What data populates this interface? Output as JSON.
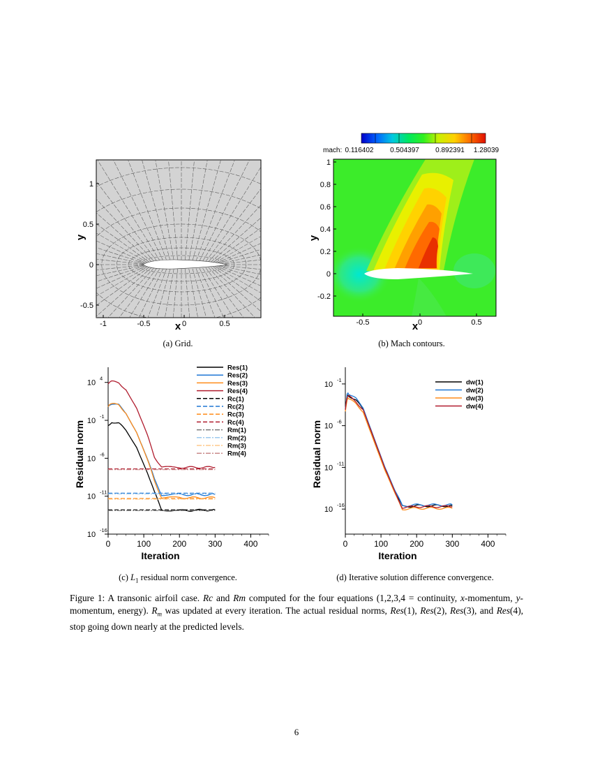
{
  "panel_a": {
    "caption": "(a) Grid.",
    "xlabel": "x",
    "ylabel": "y",
    "xticks": [
      "-1",
      "-0.5",
      "0",
      "0.5"
    ],
    "yticks": [
      "1",
      "0.5",
      "0",
      "-0.5"
    ]
  },
  "panel_b": {
    "caption": "(b) Mach contours.",
    "xlabel": "x",
    "ylabel": "y",
    "xticks": [
      "-0.5",
      "0",
      "0.5"
    ],
    "yticks": [
      "1",
      "0.8",
      "0.6",
      "0.4",
      "0.2",
      "0",
      "-0.2"
    ],
    "colorbar_label": "mach:",
    "colorbar_ticks": [
      "0.116402",
      "0.504397",
      "0.892391",
      "1.28039"
    ]
  },
  "chart_data": [
    {
      "type": "line",
      "xlabel": "Iteration",
      "ylabel": "Residual norm",
      "xticks": [
        "0",
        "100",
        "200",
        "300",
        "400"
      ],
      "yticks": [
        "10",
        "10",
        "10",
        "10",
        "10"
      ],
      "yticks_exp": [
        "4",
        "-1",
        "-6",
        "-11",
        "-16"
      ],
      "xlim": [
        0,
        450
      ],
      "ylim_log10": [
        -16,
        6
      ],
      "series": [
        {
          "name": "Res(1)",
          "color": "#000000",
          "dash": "solid",
          "x": [
            0,
            10,
            30,
            50,
            80,
            110,
            130,
            150,
            200,
            300
          ],
          "y": [
            -1.7,
            -1.2,
            -1.4,
            -2.3,
            -4.5,
            -7.8,
            -10.5,
            -12.8,
            -12.9,
            -12.8
          ]
        },
        {
          "name": "Res(2)",
          "color": "#1f77d4",
          "dash": "solid",
          "x": [
            0,
            10,
            30,
            50,
            80,
            110,
            130,
            150,
            200,
            300
          ],
          "y": [
            0.8,
            1.2,
            1.0,
            0.0,
            -2.5,
            -6.0,
            -8.8,
            -10.8,
            -10.8,
            -10.8
          ]
        },
        {
          "name": "Res(3)",
          "color": "#ff8c1a",
          "dash": "solid",
          "x": [
            0,
            10,
            30,
            50,
            80,
            110,
            130,
            150,
            200,
            300
          ],
          "y": [
            0.8,
            1.2,
            1.0,
            0.0,
            -2.6,
            -6.2,
            -9.0,
            -11.2,
            -11.2,
            -11.2
          ]
        },
        {
          "name": "Res(4)",
          "color": "#b01c2e",
          "dash": "solid",
          "x": [
            0,
            10,
            30,
            50,
            80,
            110,
            130,
            150,
            200,
            300
          ],
          "y": [
            3.8,
            4.1,
            4.0,
            3.0,
            0.5,
            -3.0,
            -5.8,
            -7.2,
            -7.2,
            -7.2
          ]
        },
        {
          "name": "Rc(1)",
          "color": "#000000",
          "dash": "dash",
          "x": [
            0,
            300
          ],
          "y": [
            -12.8,
            -12.8
          ]
        },
        {
          "name": "Rc(2)",
          "color": "#1f77d4",
          "dash": "dash",
          "x": [
            0,
            300
          ],
          "y": [
            -10.6,
            -10.6
          ]
        },
        {
          "name": "Rc(3)",
          "color": "#ff8c1a",
          "dash": "dash",
          "x": [
            0,
            300
          ],
          "y": [
            -11.3,
            -11.3
          ]
        },
        {
          "name": "Rc(4)",
          "color": "#b01c2e",
          "dash": "dash",
          "x": [
            0,
            300
          ],
          "y": [
            -7.4,
            -7.4
          ]
        },
        {
          "name": "Rm(1)",
          "color": "#7a7a7a",
          "dash": "dashdot",
          "x": [
            0,
            300
          ],
          "y": [
            -12.9,
            -12.9
          ]
        },
        {
          "name": "Rm(2)",
          "color": "#9cc8ee",
          "dash": "dashdot",
          "x": [
            0,
            300
          ],
          "y": [
            -10.7,
            -10.7
          ]
        },
        {
          "name": "Rm(3)",
          "color": "#ffc98a",
          "dash": "dashdot",
          "x": [
            0,
            300
          ],
          "y": [
            -11.4,
            -11.4
          ]
        },
        {
          "name": "Rm(4)",
          "color": "#c98a8a",
          "dash": "dashdot",
          "x": [
            0,
            300
          ],
          "y": [
            -7.5,
            -7.5
          ]
        }
      ],
      "caption_prefix": "(c) ",
      "caption_var": "L",
      "caption_sub": "1",
      "caption_rest": " residual norm convergence."
    },
    {
      "type": "line",
      "xlabel": "Iteration",
      "ylabel": "Residual norm",
      "xticks": [
        "0",
        "100",
        "200",
        "300",
        "400"
      ],
      "yticks": [
        "10",
        "10",
        "10",
        "10"
      ],
      "yticks_exp": [
        "-1",
        "-6",
        "-11",
        "-16"
      ],
      "xlim": [
        0,
        450
      ],
      "ylim_log10": [
        -19,
        1
      ],
      "series": [
        {
          "name": "dw(1)",
          "color": "#000000",
          "dash": "solid",
          "x": [
            0,
            5,
            10,
            30,
            50,
            80,
            110,
            140,
            160,
            200,
            300
          ],
          "y": [
            -4.0,
            -2.4,
            -2.4,
            -3.0,
            -4.0,
            -7.5,
            -11.0,
            -14.0,
            -15.7,
            -15.6,
            -15.6
          ]
        },
        {
          "name": "dw(2)",
          "color": "#1f77d4",
          "dash": "solid",
          "x": [
            0,
            5,
            10,
            30,
            50,
            80,
            110,
            140,
            160,
            200,
            300
          ],
          "y": [
            -4.0,
            -2.2,
            -2.2,
            -2.8,
            -3.8,
            -7.3,
            -10.8,
            -13.9,
            -15.6,
            -15.5,
            -15.5
          ]
        },
        {
          "name": "dw(3)",
          "color": "#ff8c1a",
          "dash": "solid",
          "x": [
            0,
            5,
            10,
            30,
            50,
            80,
            110,
            140,
            160,
            200,
            300
          ],
          "y": [
            -4.3,
            -2.8,
            -2.8,
            -3.4,
            -4.3,
            -7.8,
            -11.3,
            -14.3,
            -16.0,
            -15.9,
            -15.9
          ]
        },
        {
          "name": "dw(4)",
          "color": "#b01c2e",
          "dash": "solid",
          "x": [
            0,
            5,
            10,
            30,
            50,
            80,
            110,
            140,
            160,
            200,
            300
          ],
          "y": [
            -4.1,
            -2.5,
            -2.5,
            -3.1,
            -4.1,
            -7.6,
            -11.1,
            -14.1,
            -15.8,
            -15.7,
            -15.7
          ]
        }
      ],
      "caption": "(d) Iterative solution difference convergence."
    }
  ],
  "figure_caption": {
    "p1": "Figure 1: A transonic airfoil case. ",
    "rc": "Rc",
    "and1": " and ",
    "rm": "Rm",
    "p2": " computed for the four equations (1,2,3,4 = continuity, ",
    "x": "x",
    "p3": "-momentum, ",
    "y": "y",
    "p4": "-momentum, energy). ",
    "R": "R",
    "m": "m",
    "p5": " was updated at every iteration. The actual residual norms, ",
    "res1": "Res",
    "a1": "(1), ",
    "res2": "Res",
    "a2": "(2), ",
    "res3": "Res",
    "a3": "(3), and ",
    "res4": "Res",
    "a4": "(4), stop going down nearly at the predicted levels."
  },
  "page_number": "6"
}
